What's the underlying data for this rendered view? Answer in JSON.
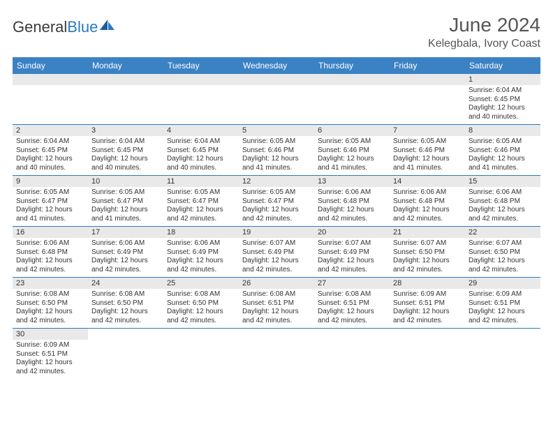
{
  "logo": {
    "textDark": "General",
    "textBlue": "Blue"
  },
  "title": "June 2024",
  "location": "Kelegbala, Ivory Coast",
  "colors": {
    "headerBg": "#3b82c4",
    "headerText": "#ffffff",
    "dayStrip": "#e9e9e9",
    "rowBorder": "#2a7ac0",
    "bodyText": "#333333",
    "titleText": "#555555"
  },
  "dayHeaders": [
    "Sunday",
    "Monday",
    "Tuesday",
    "Wednesday",
    "Thursday",
    "Friday",
    "Saturday"
  ],
  "weeks": [
    [
      null,
      null,
      null,
      null,
      null,
      null,
      {
        "d": "1",
        "sr": "6:04 AM",
        "ss": "6:45 PM",
        "dl": "12 hours and 40 minutes."
      }
    ],
    [
      {
        "d": "2",
        "sr": "6:04 AM",
        "ss": "6:45 PM",
        "dl": "12 hours and 40 minutes."
      },
      {
        "d": "3",
        "sr": "6:04 AM",
        "ss": "6:45 PM",
        "dl": "12 hours and 40 minutes."
      },
      {
        "d": "4",
        "sr": "6:04 AM",
        "ss": "6:45 PM",
        "dl": "12 hours and 40 minutes."
      },
      {
        "d": "5",
        "sr": "6:05 AM",
        "ss": "6:46 PM",
        "dl": "12 hours and 41 minutes."
      },
      {
        "d": "6",
        "sr": "6:05 AM",
        "ss": "6:46 PM",
        "dl": "12 hours and 41 minutes."
      },
      {
        "d": "7",
        "sr": "6:05 AM",
        "ss": "6:46 PM",
        "dl": "12 hours and 41 minutes."
      },
      {
        "d": "8",
        "sr": "6:05 AM",
        "ss": "6:46 PM",
        "dl": "12 hours and 41 minutes."
      }
    ],
    [
      {
        "d": "9",
        "sr": "6:05 AM",
        "ss": "6:47 PM",
        "dl": "12 hours and 41 minutes."
      },
      {
        "d": "10",
        "sr": "6:05 AM",
        "ss": "6:47 PM",
        "dl": "12 hours and 41 minutes."
      },
      {
        "d": "11",
        "sr": "6:05 AM",
        "ss": "6:47 PM",
        "dl": "12 hours and 42 minutes."
      },
      {
        "d": "12",
        "sr": "6:05 AM",
        "ss": "6:47 PM",
        "dl": "12 hours and 42 minutes."
      },
      {
        "d": "13",
        "sr": "6:06 AM",
        "ss": "6:48 PM",
        "dl": "12 hours and 42 minutes."
      },
      {
        "d": "14",
        "sr": "6:06 AM",
        "ss": "6:48 PM",
        "dl": "12 hours and 42 minutes."
      },
      {
        "d": "15",
        "sr": "6:06 AM",
        "ss": "6:48 PM",
        "dl": "12 hours and 42 minutes."
      }
    ],
    [
      {
        "d": "16",
        "sr": "6:06 AM",
        "ss": "6:48 PM",
        "dl": "12 hours and 42 minutes."
      },
      {
        "d": "17",
        "sr": "6:06 AM",
        "ss": "6:49 PM",
        "dl": "12 hours and 42 minutes."
      },
      {
        "d": "18",
        "sr": "6:06 AM",
        "ss": "6:49 PM",
        "dl": "12 hours and 42 minutes."
      },
      {
        "d": "19",
        "sr": "6:07 AM",
        "ss": "6:49 PM",
        "dl": "12 hours and 42 minutes."
      },
      {
        "d": "20",
        "sr": "6:07 AM",
        "ss": "6:49 PM",
        "dl": "12 hours and 42 minutes."
      },
      {
        "d": "21",
        "sr": "6:07 AM",
        "ss": "6:50 PM",
        "dl": "12 hours and 42 minutes."
      },
      {
        "d": "22",
        "sr": "6:07 AM",
        "ss": "6:50 PM",
        "dl": "12 hours and 42 minutes."
      }
    ],
    [
      {
        "d": "23",
        "sr": "6:08 AM",
        "ss": "6:50 PM",
        "dl": "12 hours and 42 minutes."
      },
      {
        "d": "24",
        "sr": "6:08 AM",
        "ss": "6:50 PM",
        "dl": "12 hours and 42 minutes."
      },
      {
        "d": "25",
        "sr": "6:08 AM",
        "ss": "6:50 PM",
        "dl": "12 hours and 42 minutes."
      },
      {
        "d": "26",
        "sr": "6:08 AM",
        "ss": "6:51 PM",
        "dl": "12 hours and 42 minutes."
      },
      {
        "d": "27",
        "sr": "6:08 AM",
        "ss": "6:51 PM",
        "dl": "12 hours and 42 minutes."
      },
      {
        "d": "28",
        "sr": "6:09 AM",
        "ss": "6:51 PM",
        "dl": "12 hours and 42 minutes."
      },
      {
        "d": "29",
        "sr": "6:09 AM",
        "ss": "6:51 PM",
        "dl": "12 hours and 42 minutes."
      }
    ],
    [
      {
        "d": "30",
        "sr": "6:09 AM",
        "ss": "6:51 PM",
        "dl": "12 hours and 42 minutes."
      },
      null,
      null,
      null,
      null,
      null,
      null
    ]
  ],
  "labels": {
    "sunrise": "Sunrise:",
    "sunset": "Sunset:",
    "daylight": "Daylight:"
  }
}
